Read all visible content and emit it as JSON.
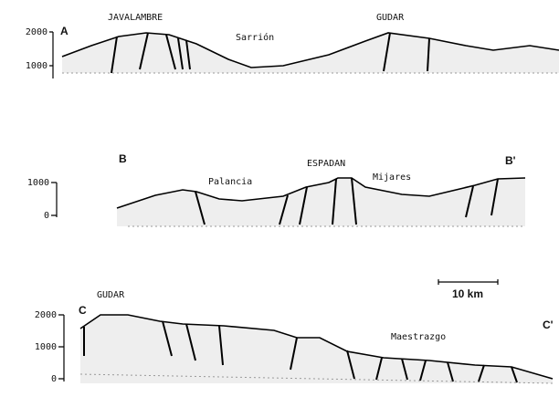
{
  "sections": [
    {
      "label": "A",
      "yticks": [
        "2000",
        "1000"
      ],
      "places": [
        "JAVALAMBRE",
        "GUDAR",
        "Sarrión"
      ]
    },
    {
      "label": "B",
      "end_label": "B'",
      "yticks": [
        "1000",
        "0"
      ],
      "places": [
        "Palancia",
        "ESPADAN",
        "Mijares"
      ]
    },
    {
      "label": "C",
      "end_label": "C'",
      "yticks": [
        "2000",
        "1000",
        "0"
      ],
      "places": [
        "GUDAR",
        "Maestrazgo"
      ]
    }
  ],
  "scale_bar": "10 km"
}
